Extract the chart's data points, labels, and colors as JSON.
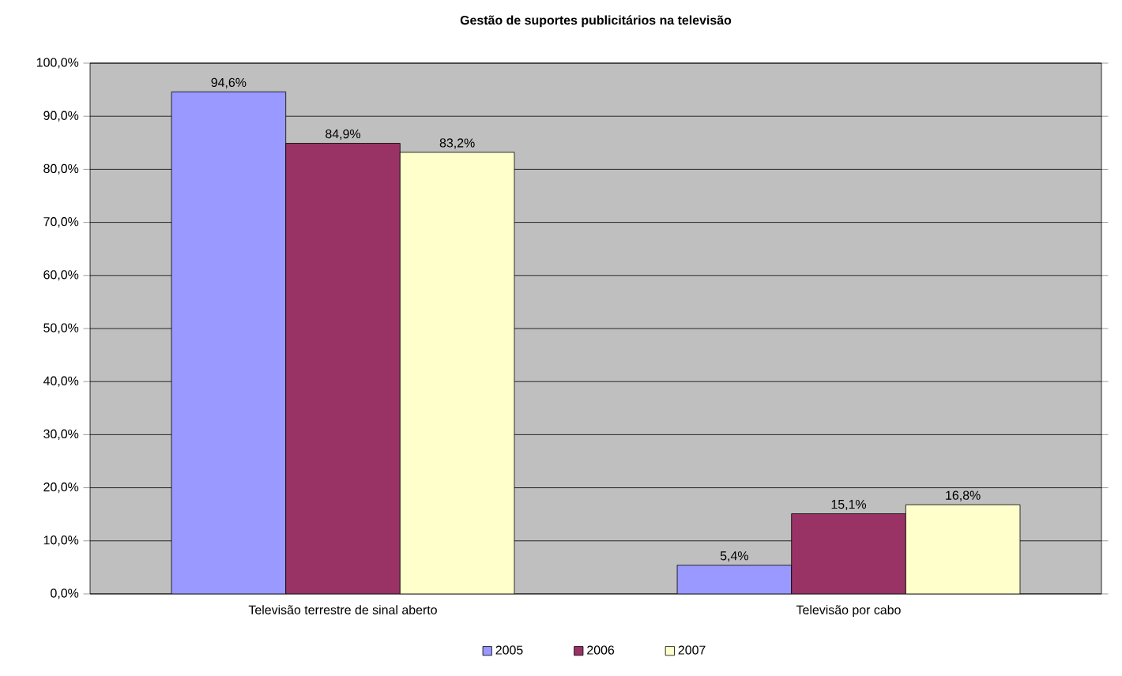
{
  "chart_data": {
    "type": "bar",
    "title": "Gestão de suportes publicitários na televisão",
    "categories": [
      "Televisão terrestre de sinal aberto",
      "Televisão por cabo"
    ],
    "series": [
      {
        "name": "2005",
        "color": "#9999ff",
        "values": [
          94.6,
          5.4
        ],
        "value_labels": [
          "94,6%",
          "5,4%"
        ]
      },
      {
        "name": "2006",
        "color": "#993366",
        "values": [
          84.9,
          15.1
        ],
        "value_labels": [
          "84,9%",
          "15,1%"
        ]
      },
      {
        "name": "2007",
        "color": "#ffffcc",
        "values": [
          83.2,
          16.8
        ],
        "value_labels": [
          "83,2%",
          "16,8%"
        ]
      }
    ],
    "ylim": [
      0,
      100
    ],
    "yticks": [
      {
        "value": 0,
        "label": "0,0%"
      },
      {
        "value": 10,
        "label": "10,0%"
      },
      {
        "value": 20,
        "label": "20,0%"
      },
      {
        "value": 30,
        "label": "30,0%"
      },
      {
        "value": 40,
        "label": "40,0%"
      },
      {
        "value": 50,
        "label": "50,0%"
      },
      {
        "value": 60,
        "label": "60,0%"
      },
      {
        "value": 70,
        "label": "70,0%"
      },
      {
        "value": 80,
        "label": "80,0%"
      },
      {
        "value": 90,
        "label": "90,0%"
      },
      {
        "value": 100,
        "label": "100,0%"
      }
    ],
    "grid": "y",
    "legend": "bottom"
  }
}
